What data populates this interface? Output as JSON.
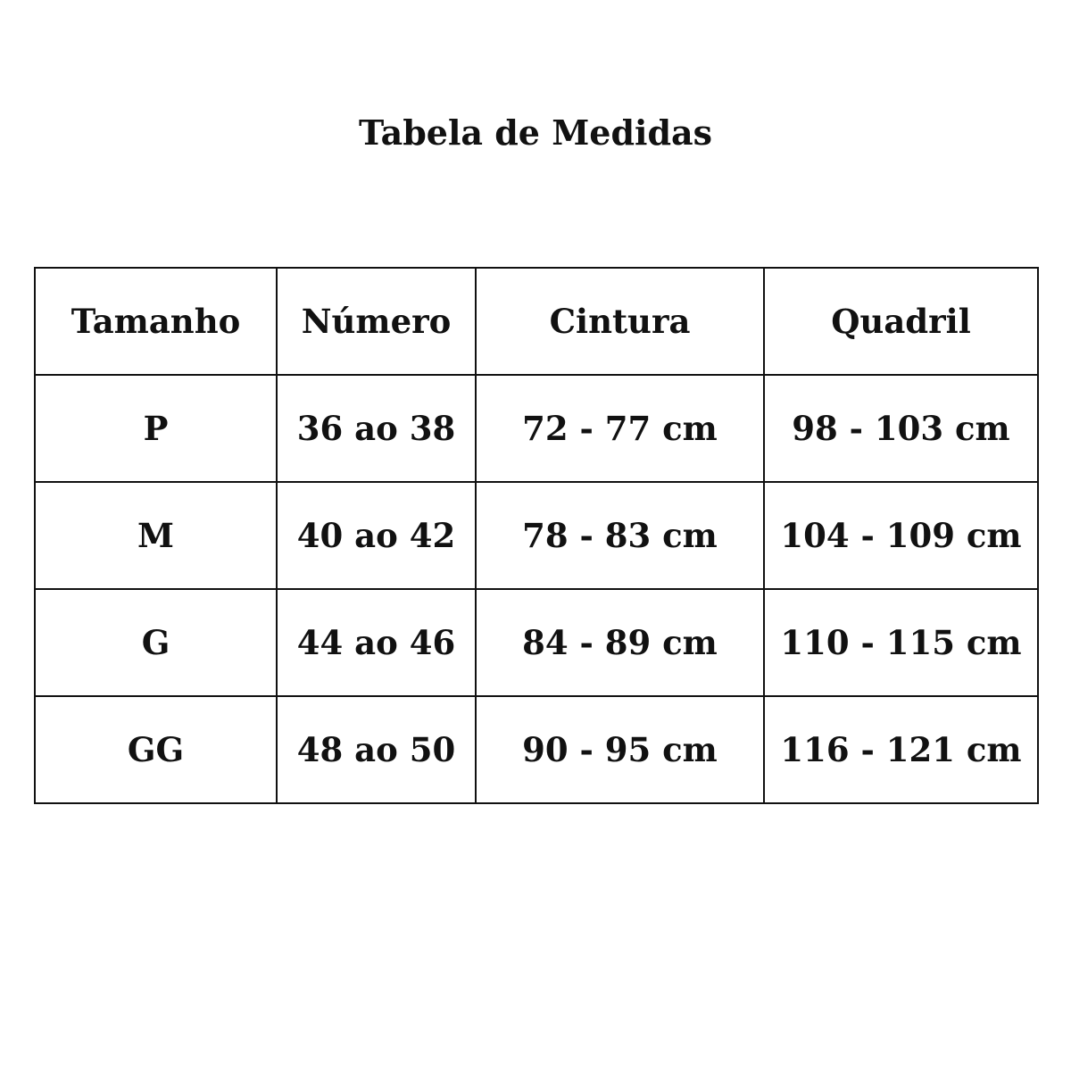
{
  "title": "Tabela de Medidas",
  "table": {
    "headers": [
      "Tamanho",
      "Número",
      "Cintura",
      "Quadril"
    ],
    "rows": [
      [
        "P",
        "36 ao 38",
        "72 - 77 cm",
        "98 - 103 cm"
      ],
      [
        "M",
        "40 ao 42",
        "78 - 83 cm",
        "104 - 109 cm"
      ],
      [
        "G",
        "44 ao 46",
        "84 - 89 cm",
        "110 - 115 cm"
      ],
      [
        "GG",
        "48 ao 50",
        "90 - 95 cm",
        "116 - 121 cm"
      ]
    ]
  }
}
